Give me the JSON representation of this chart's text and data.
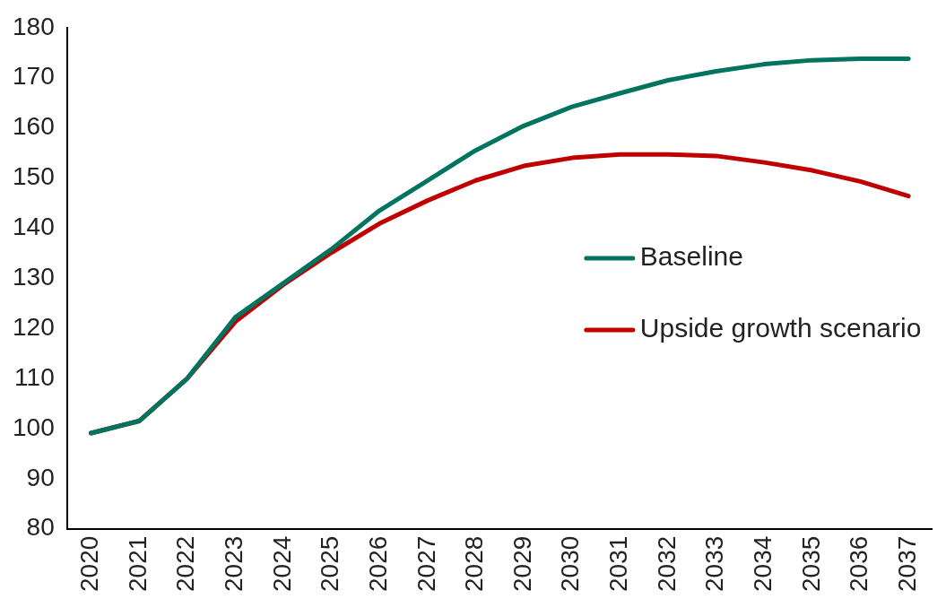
{
  "chart_data": {
    "type": "line",
    "categories": [
      "2020",
      "2021",
      "2022",
      "2023",
      "2024",
      "2025",
      "2026",
      "2027",
      "2028",
      "2029",
      "2030",
      "2031",
      "2032",
      "2033",
      "2034",
      "2035",
      "2036",
      "2037"
    ],
    "series": [
      {
        "name": "Baseline",
        "color": "#00745f",
        "values": [
          99.1,
          101.5,
          110,
          122.2,
          129,
          135.8,
          143.5,
          149.5,
          155.5,
          160.4,
          164.2,
          166.9,
          169.5,
          171.3,
          172.7,
          173.5,
          173.8,
          173.8
        ]
      },
      {
        "name": "Upside growth scenario",
        "color": "#c00000",
        "values": [
          99.1,
          101.5,
          110,
          121.3,
          128.7,
          135.1,
          140.9,
          145.5,
          149.5,
          152.4,
          154,
          154.7,
          154.7,
          154.4,
          153.1,
          151.5,
          149.3,
          146.4
        ]
      }
    ],
    "ylim": [
      80,
      180
    ],
    "yticks": [
      80,
      90,
      100,
      110,
      120,
      130,
      140,
      150,
      160,
      170,
      180
    ],
    "grid": false,
    "legend": "right",
    "marker": "none",
    "line_style": "solid"
  }
}
